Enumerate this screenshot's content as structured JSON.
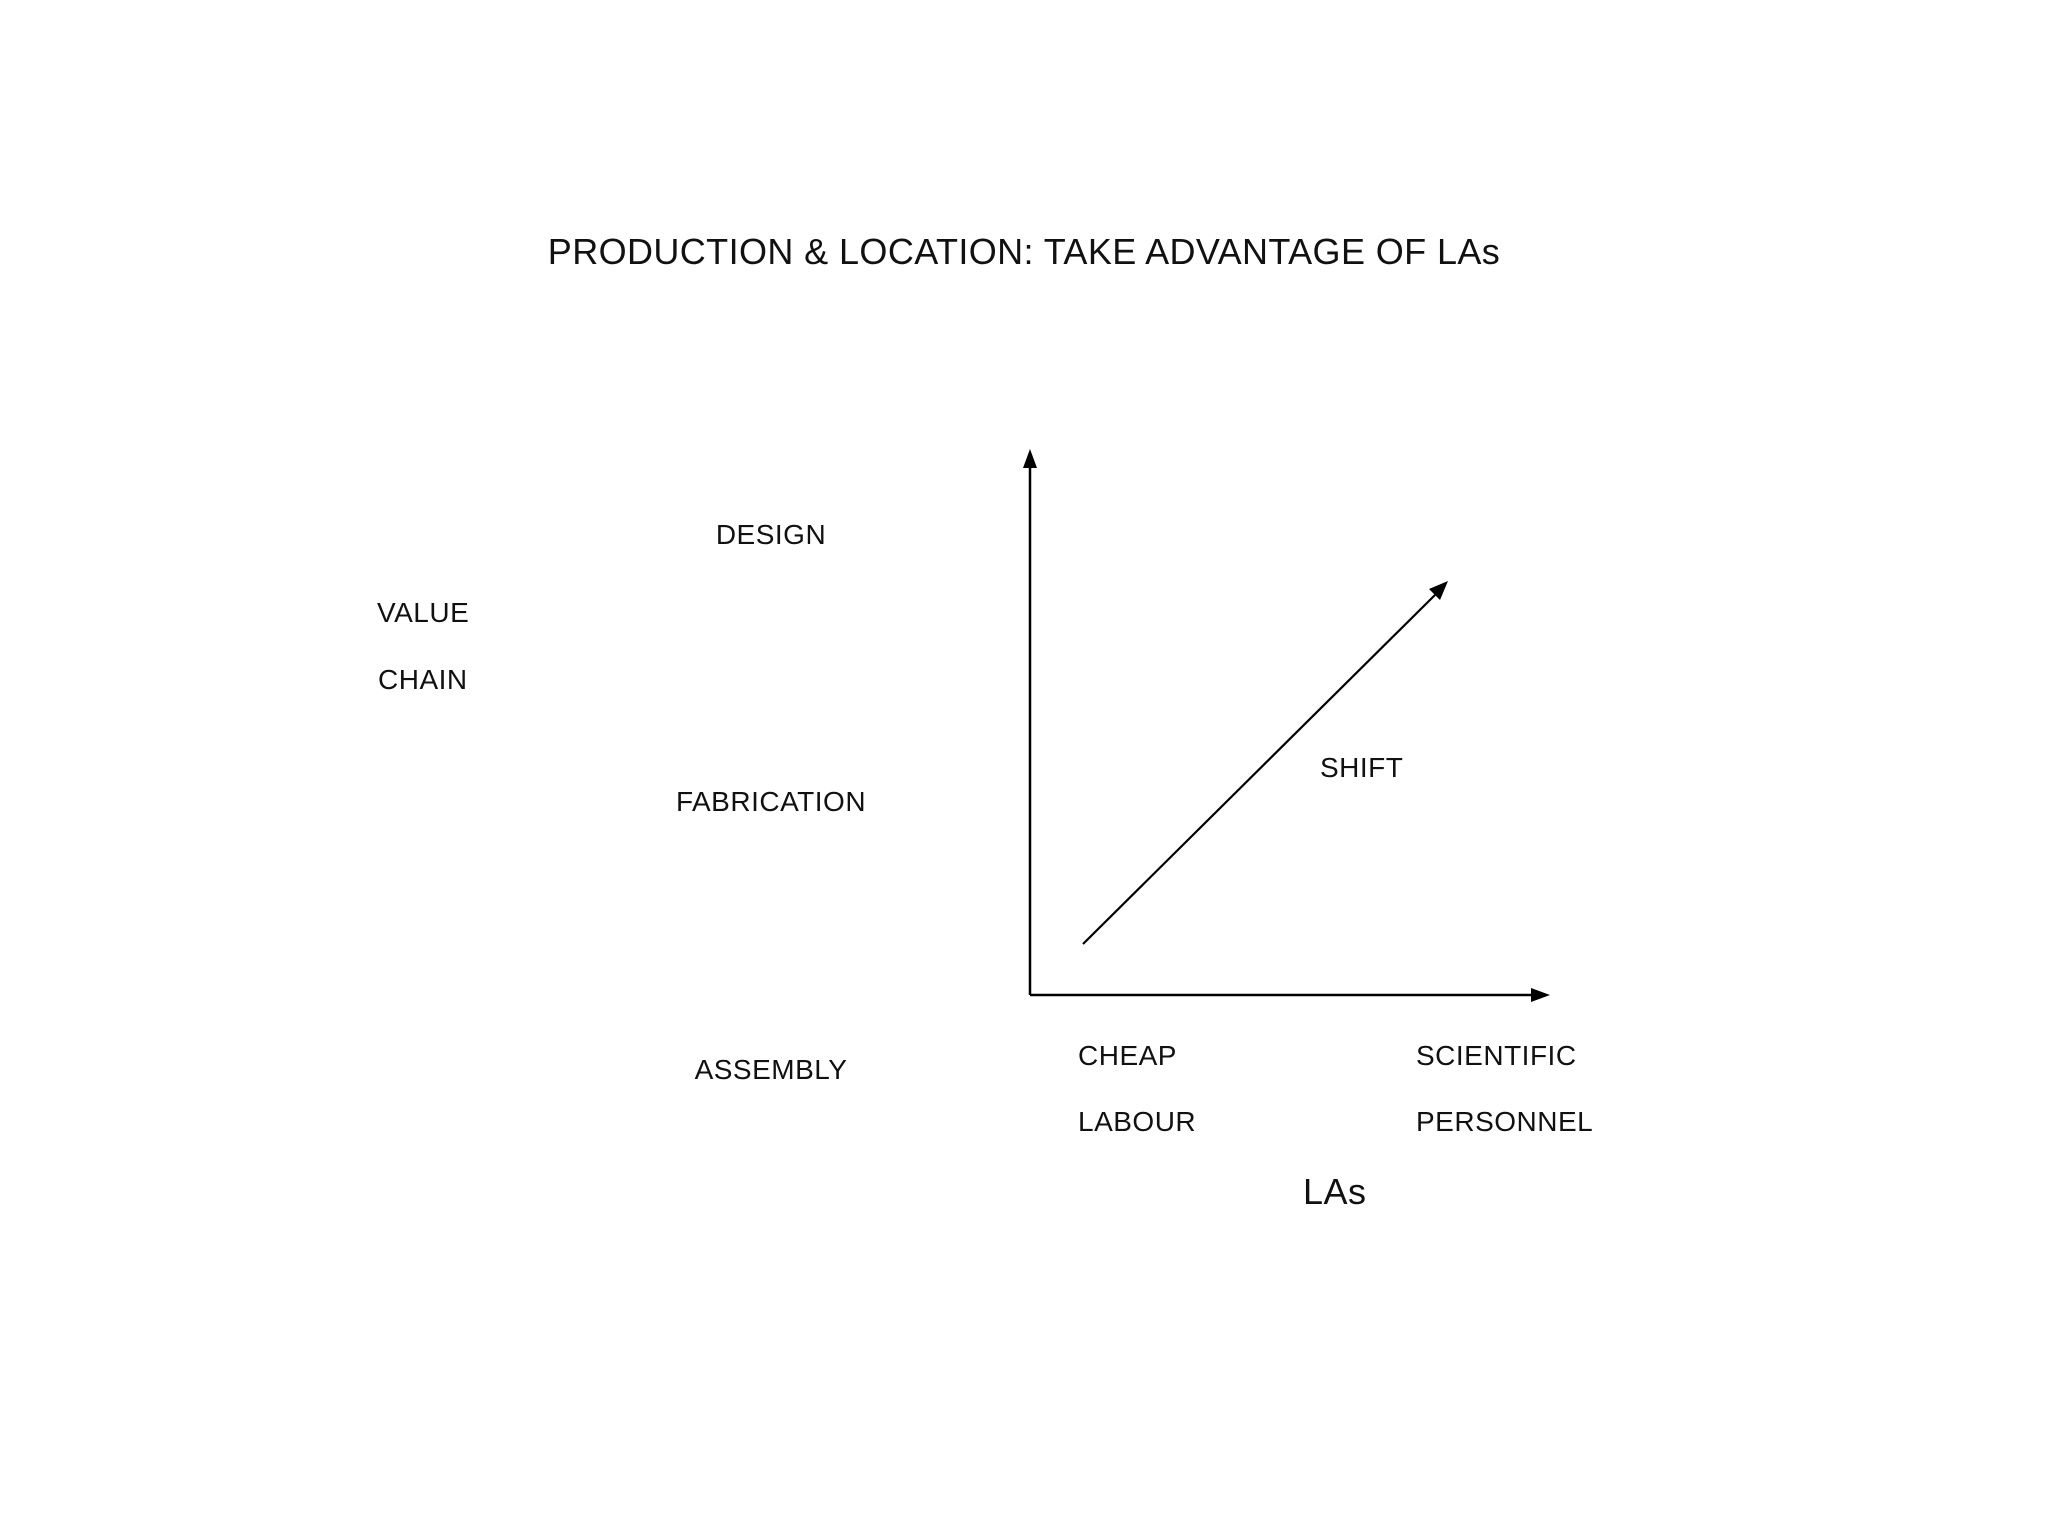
{
  "title": "PRODUCTION & LOCATION:  TAKE ADVANTAGE OF LAs",
  "side_label": {
    "line1": "VALUE",
    "line2": "CHAIN"
  },
  "value_chain_stages": {
    "top": "DESIGN",
    "middle": "FABRICATION",
    "bottom": "ASSEMBLY"
  },
  "x_axis": {
    "left_line1": "CHEAP",
    "left_line2": "LABOUR",
    "right_line1": "SCIENTIFIC",
    "right_line2": "PERSONNEL",
    "title": "LAs"
  },
  "arrow_label": "SHIFT",
  "stroke_color": "#000000"
}
